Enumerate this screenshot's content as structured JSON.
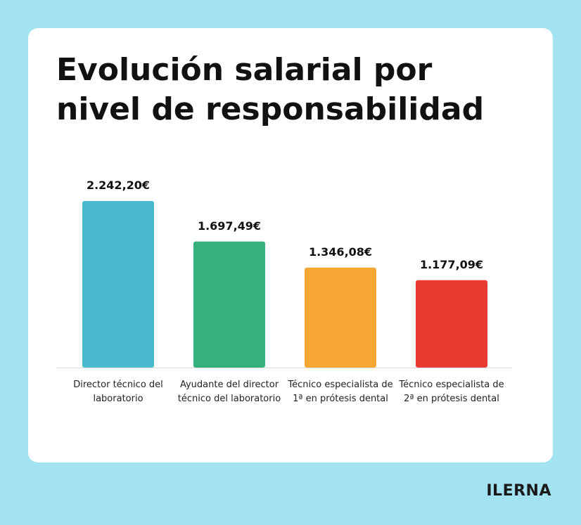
{
  "chart_data": {
    "type": "bar",
    "title": "Evolución salarial por nivel de responsabilidad",
    "categories": [
      "Director técnico del laboratorio",
      "Ayudante del director técnico del laboratorio",
      "Técnico especialista de 1ª en prótesis dental",
      "Técnico especialista de 2ª en prótesis dental"
    ],
    "values": [
      2242.2,
      1697.49,
      1346.08,
      1177.09
    ],
    "value_labels": [
      "2.242,20€",
      "1.697,49€",
      "1.346,08€",
      "1.177,09€"
    ],
    "colors": [
      "#4abacf",
      "#35b17f",
      "#f6a632",
      "#e83c33"
    ]
  },
  "brand": "ILERNA"
}
